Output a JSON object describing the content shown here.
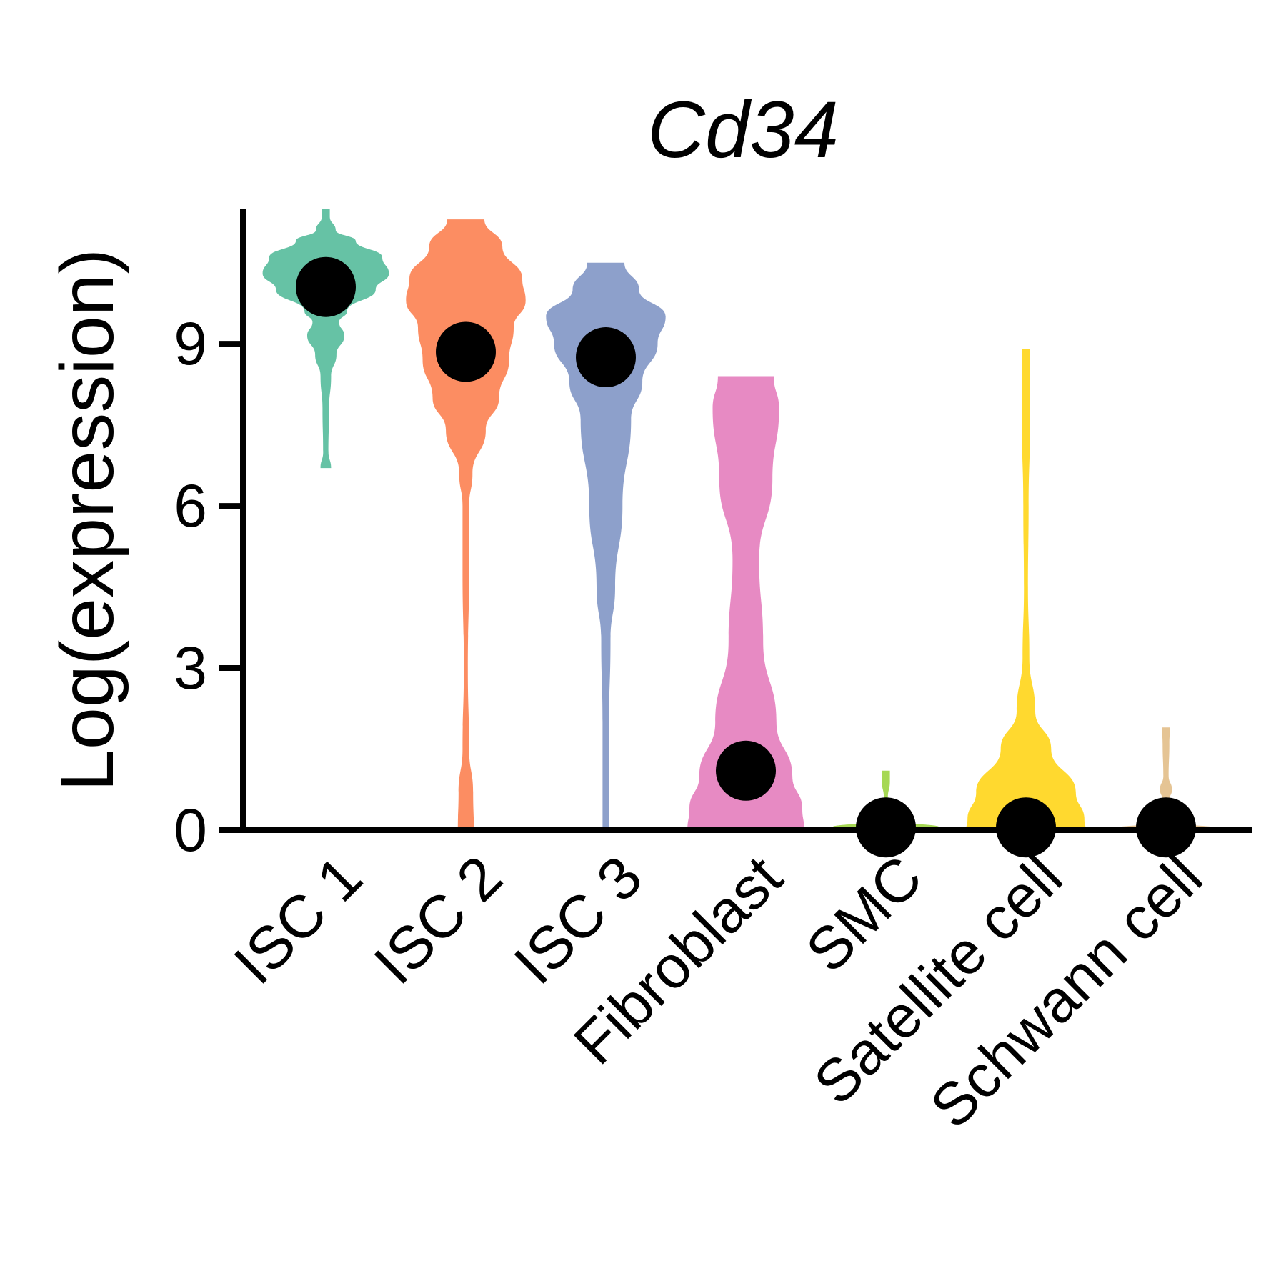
{
  "chart_data": {
    "type": "violin",
    "title": "Cd34",
    "xlabel": "",
    "ylabel": "Log(expression)",
    "ylim": [
      0,
      11.5
    ],
    "yticks": [
      0,
      3,
      6,
      9
    ],
    "categories": [
      "ISC 1",
      "ISC 2",
      "ISC 3",
      "Fibroblast",
      "SMC",
      "Satellite cell",
      "Schwann cell"
    ],
    "colors": [
      "#66C2A5",
      "#FC8D62",
      "#8DA0CB",
      "#E78AC3",
      "#A6D854",
      "#FFD92F",
      "#E5C494"
    ],
    "medians": [
      10.05,
      8.85,
      8.75,
      1.1,
      0.05,
      0.05,
      0.05
    ],
    "violins": [
      {
        "name": "ISC 1",
        "max": 11.5,
        "min": 6.7,
        "profile": [
          [
            11.5,
            0.06
          ],
          [
            11.35,
            0.06
          ],
          [
            11.1,
            0.15
          ],
          [
            10.9,
            0.45
          ],
          [
            10.6,
            0.85
          ],
          [
            10.3,
            0.95
          ],
          [
            10.0,
            0.75
          ],
          [
            9.6,
            0.32
          ],
          [
            9.4,
            0.2
          ],
          [
            9.15,
            0.28
          ],
          [
            8.8,
            0.16
          ],
          [
            8.4,
            0.08
          ],
          [
            7.8,
            0.05
          ],
          [
            7.0,
            0.04
          ],
          [
            6.7,
            0.08
          ]
        ]
      },
      {
        "name": "ISC 2",
        "max": 11.3,
        "min": 0,
        "profile": [
          [
            11.3,
            0.28
          ],
          [
            10.8,
            0.55
          ],
          [
            10.2,
            0.85
          ],
          [
            9.8,
            0.9
          ],
          [
            9.3,
            0.72
          ],
          [
            8.7,
            0.65
          ],
          [
            8.0,
            0.5
          ],
          [
            7.4,
            0.3
          ],
          [
            6.6,
            0.1
          ],
          [
            6.0,
            0.05
          ],
          [
            4.8,
            0.05
          ],
          [
            3.0,
            0.03
          ],
          [
            1.5,
            0.05
          ],
          [
            0.7,
            0.11
          ],
          [
            0,
            0.12
          ]
        ]
      },
      {
        "name": "ISC 3",
        "max": 10.5,
        "min": 0,
        "profile": [
          [
            10.5,
            0.28
          ],
          [
            10.0,
            0.5
          ],
          [
            9.5,
            0.9
          ],
          [
            9.0,
            0.78
          ],
          [
            8.3,
            0.55
          ],
          [
            7.6,
            0.38
          ],
          [
            6.0,
            0.25
          ],
          [
            4.5,
            0.14
          ],
          [
            3.5,
            0.07
          ],
          [
            2.0,
            0.05
          ],
          [
            0.5,
            0.05
          ],
          [
            0,
            0.05
          ]
        ]
      },
      {
        "name": "Fibroblast",
        "max": 8.4,
        "min": 0,
        "profile": [
          [
            8.4,
            0.42
          ],
          [
            7.8,
            0.5
          ],
          [
            6.5,
            0.4
          ],
          [
            5.0,
            0.2
          ],
          [
            3.5,
            0.26
          ],
          [
            2.0,
            0.46
          ],
          [
            1.0,
            0.7
          ],
          [
            0.4,
            0.85
          ],
          [
            0,
            0.88
          ]
        ]
      },
      {
        "name": "SMC",
        "max": 1.1,
        "min": 0,
        "profile": [
          [
            1.1,
            0.06
          ],
          [
            0.9,
            0.06
          ],
          [
            0.6,
            0.03
          ],
          [
            0.35,
            0.05
          ],
          [
            0.15,
            0.35
          ],
          [
            0.06,
            0.8
          ],
          [
            0,
            0.85
          ]
        ]
      },
      {
        "name": "Satellite cell",
        "max": 8.9,
        "min": 0,
        "profile": [
          [
            8.9,
            0.06
          ],
          [
            7.5,
            0.06
          ],
          [
            6.0,
            0.04
          ],
          [
            4.5,
            0.03
          ],
          [
            3.2,
            0.05
          ],
          [
            2.2,
            0.14
          ],
          [
            1.5,
            0.38
          ],
          [
            0.7,
            0.75
          ],
          [
            0.2,
            0.88
          ],
          [
            0,
            0.9
          ]
        ]
      },
      {
        "name": "Schwann cell",
        "max": 1.9,
        "min": 0,
        "profile": [
          [
            1.9,
            0.06
          ],
          [
            1.6,
            0.05
          ],
          [
            1.0,
            0.04
          ],
          [
            0.75,
            0.09
          ],
          [
            0.55,
            0.05
          ],
          [
            0.3,
            0.06
          ],
          [
            0.12,
            0.3
          ],
          [
            0.04,
            0.75
          ],
          [
            0,
            0.9
          ]
        ]
      }
    ]
  }
}
